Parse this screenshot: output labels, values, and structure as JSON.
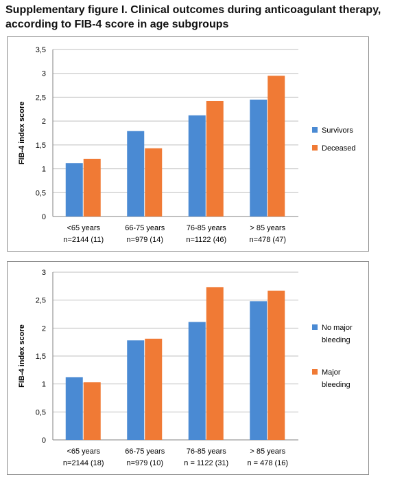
{
  "title_line1": "Supplementary figure I. Clinical outcomes during anticoagulant therapy,",
  "title_line2": "according to FIB-4 score in age subgroups",
  "colors": {
    "series1": "#4a8ad3",
    "series2": "#f07a35",
    "grid": "#bfbfbf",
    "axis": "#808080"
  },
  "chart_data": [
    {
      "type": "bar",
      "ylabel": "FIB-4 index score",
      "xlabel": "",
      "ylim": [
        0,
        3.5
      ],
      "yticks": [
        "0",
        "0,5",
        "1",
        "1,5",
        "2",
        "2,5",
        "3",
        "3,5"
      ],
      "grid": true,
      "legend_position": "right",
      "categories": [
        [
          "<65 years",
          "n=2144 (11)"
        ],
        [
          "66-75 years",
          "n=979 (14)"
        ],
        [
          "76-85 years",
          "n=1122 (46)"
        ],
        [
          "> 85 years",
          "n=478 (47)"
        ]
      ],
      "series": [
        {
          "name": "Survivors",
          "name_lines": [
            "Survivors"
          ],
          "values": [
            1.12,
            1.79,
            2.12,
            2.45
          ]
        },
        {
          "name": "Deceased",
          "name_lines": [
            "Deceased"
          ],
          "values": [
            1.21,
            1.43,
            2.42,
            2.95
          ]
        }
      ]
    },
    {
      "type": "bar",
      "ylabel": "FIB-4 index score",
      "xlabel": "",
      "ylim": [
        0,
        3
      ],
      "yticks": [
        "0",
        "0,5",
        "1",
        "1,5",
        "2",
        "2,5",
        "3"
      ],
      "grid": true,
      "legend_position": "right",
      "categories": [
        [
          "<65 years",
          "n=2144 (18)"
        ],
        [
          "66-75 years",
          "n=979 (10)"
        ],
        [
          "76-85 years",
          "n = 1122 (31)"
        ],
        [
          "> 85 years",
          "n = 478 (16)"
        ]
      ],
      "series": [
        {
          "name": "No major bleeding",
          "name_lines": [
            "No major",
            "bleeding"
          ],
          "values": [
            1.12,
            1.78,
            2.11,
            2.48
          ]
        },
        {
          "name": "Major bleeding",
          "name_lines": [
            "Major",
            "bleeding"
          ],
          "values": [
            1.03,
            1.81,
            2.73,
            2.67
          ]
        }
      ]
    }
  ]
}
